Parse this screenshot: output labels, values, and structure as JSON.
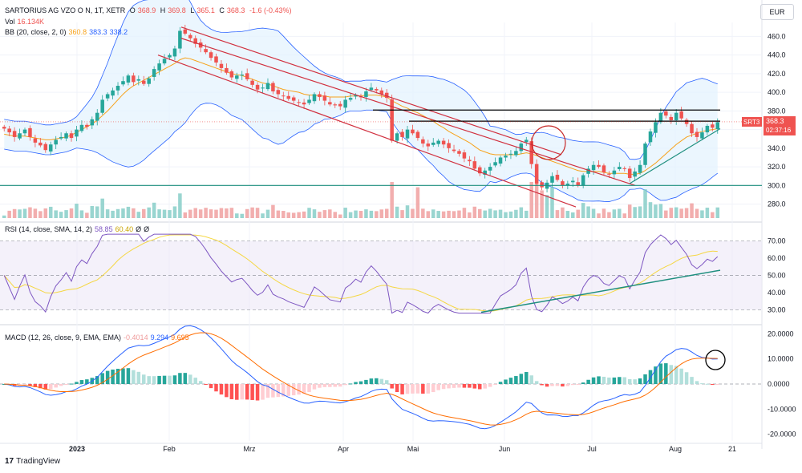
{
  "header": {
    "symbol": "SARTORIUS AG VZO O N, 1T, XETR",
    "open_label": "O",
    "open": "368.9",
    "high_label": "H",
    "high": "369.8",
    "low_label": "L",
    "low": "365.1",
    "close_label": "C",
    "close": "368.3",
    "change": "-1.6 (-0.43%)",
    "vol_label": "Vol",
    "vol": "16.134K",
    "bb_label": "BB (20, close, 2, 0)",
    "bb_basis": "360.8",
    "bb_upper": "383.3",
    "bb_lower": "338.2"
  },
  "currency": "EUR",
  "price_tag": {
    "symbol": "SRT3",
    "price": "368.3",
    "countdown": "02:37:16"
  },
  "rsi_header": {
    "label": "RSI (14, close, SMA, 14, 2)",
    "rsi": "58.85",
    "sma": "60.40",
    "z1": "Ø",
    "z2": "Ø"
  },
  "macd_header": {
    "label": "MACD (12, 26, close, 9, EMA, EMA)",
    "hist": "-0.4014",
    "macd": "9.294",
    "signal": "9.695"
  },
  "footer": {
    "logo": "17",
    "brand": "TradingView"
  },
  "colors": {
    "up": "#26a69a",
    "down": "#ef5350",
    "bb_basis": "#f7a21b",
    "bb_band": "#2962ff",
    "bb_fill": "#e3f2fd",
    "rsi": "#7e57c2",
    "rsi_sma": "#f5d742",
    "macd": "#2962ff",
    "signal": "#ff6d00",
    "channel": "#d1303f",
    "trend": "#1f8f7f",
    "circle": "#c62828"
  },
  "chart_data": [
    {
      "type": "candlestick",
      "title": "SARTORIUS AG VZO O N, 1T, XETR",
      "x_ticks": [
        "2023",
        "Feb",
        "Mrz",
        "Apr",
        "Mai",
        "Jun",
        "Jul",
        "Aug",
        "21"
      ],
      "y_ticks": [
        280,
        300,
        320,
        340,
        360,
        380,
        400,
        420,
        440,
        460
      ],
      "ylim": [
        265,
        475
      ],
      "grid": true,
      "close_series": [
        361,
        357,
        352,
        356,
        360,
        352,
        346,
        343,
        338,
        344,
        349,
        352,
        356,
        351,
        360,
        365,
        363,
        371,
        378,
        392,
        398,
        402,
        407,
        412,
        418,
        411,
        414,
        409,
        415,
        425,
        431,
        436,
        440,
        447,
        466,
        463,
        458,
        452,
        448,
        443,
        437,
        432,
        426,
        421,
        416,
        418,
        419,
        414,
        408,
        403,
        405,
        410,
        401,
        398,
        396,
        393,
        391,
        389,
        387,
        392,
        398,
        395,
        391,
        387,
        386,
        385,
        392,
        394,
        397,
        395,
        401,
        405,
        402,
        398,
        394,
        348,
        356,
        352,
        360,
        356,
        351,
        345,
        342,
        346,
        348,
        344,
        340,
        337,
        334,
        329,
        326,
        318,
        313,
        316,
        320,
        325,
        330,
        332,
        334,
        337,
        345,
        349,
        323,
        302,
        298,
        303,
        310,
        306,
        300,
        302,
        305,
        300,
        311,
        318,
        322,
        320,
        314,
        312,
        316,
        320,
        318,
        308,
        315,
        322,
        345,
        358,
        368,
        378,
        375,
        370,
        378,
        372,
        366,
        356,
        352,
        357,
        364,
        362,
        368
      ],
      "bb_basis_series": [
        355,
        354,
        353,
        353,
        353,
        352,
        351,
        350,
        349,
        349,
        350,
        351,
        352,
        354,
        357,
        360,
        363,
        366,
        370,
        375,
        380,
        386,
        392,
        398,
        403,
        407,
        410,
        413,
        416,
        419,
        422,
        425,
        428,
        431,
        435,
        437,
        436,
        434,
        432,
        430,
        428,
        426,
        424,
        422,
        420,
        419,
        418,
        416,
        414,
        412,
        410,
        409,
        407,
        405,
        403,
        402,
        401,
        400,
        398,
        397,
        397,
        396,
        396,
        395,
        395,
        395,
        395,
        396,
        396,
        396,
        397,
        397,
        397,
        396,
        395,
        391,
        388,
        385,
        383,
        380,
        378,
        375,
        372,
        369,
        365,
        362,
        358,
        355,
        352,
        349,
        346,
        342,
        338,
        336,
        334,
        333,
        333,
        333,
        333,
        333,
        334,
        335,
        334,
        332,
        330,
        328,
        326,
        324,
        322,
        320,
        318,
        316,
        315,
        315,
        315,
        315,
        314,
        313,
        313,
        313,
        313,
        312,
        312,
        313,
        316,
        320,
        324,
        329,
        334,
        339,
        344,
        348,
        352,
        354,
        356,
        358,
        359,
        360,
        361
      ],
      "highlights": {
        "resistance": [
          381,
          369
        ],
        "support": 300
      },
      "volume_ylim": [
        0,
        60
      ]
    },
    {
      "type": "line",
      "title": "RSI (14, close, SMA, 14, 2)",
      "y_ticks": [
        30,
        40,
        50,
        60,
        70
      ],
      "ylim": [
        25,
        75
      ],
      "bands": [
        30,
        50,
        70
      ],
      "series_values_last": [
        58.85,
        60.4
      ]
    },
    {
      "type": "line",
      "title": "MACD (12, 26, close, 9, EMA, EMA)",
      "y_ticks": [
        -20,
        -10,
        0,
        10,
        20
      ],
      "ylim": [
        -22,
        22
      ],
      "series_values_last": [
        9.294,
        9.695,
        -0.4014
      ]
    }
  ]
}
